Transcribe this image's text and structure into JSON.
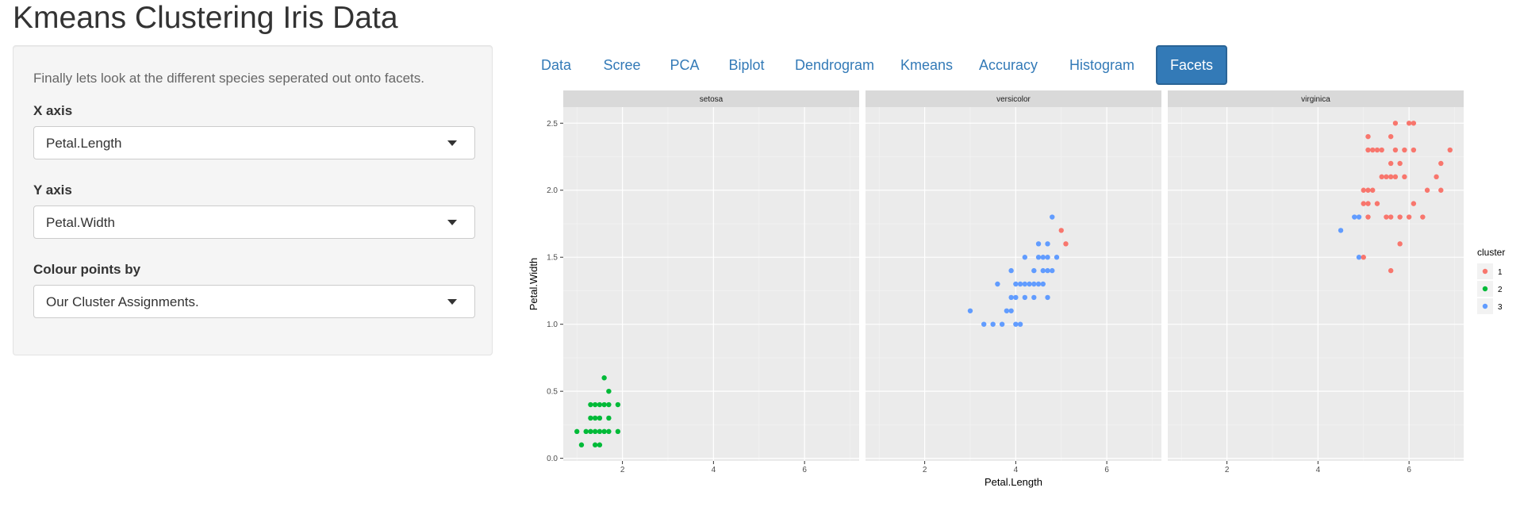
{
  "app": {
    "title": "Kmeans Clustering Iris Data"
  },
  "sidebar": {
    "description": "Finally lets look at the different species seperated out onto facets.",
    "x_axis": {
      "label": "X axis",
      "value": "Petal.Length"
    },
    "y_axis": {
      "label": "Y axis",
      "value": "Petal.Width"
    },
    "colour_by": {
      "label": "Colour points by",
      "value": "Our Cluster Assignments."
    }
  },
  "tabs": [
    {
      "label": "Data",
      "active": false
    },
    {
      "label": "Scree",
      "active": false
    },
    {
      "label": "PCA",
      "active": false
    },
    {
      "label": "Biplot",
      "active": false
    },
    {
      "label": "Dendrogram",
      "active": false
    },
    {
      "label": "Kmeans",
      "active": false
    },
    {
      "label": "Accuracy",
      "active": false
    },
    {
      "label": "Histogram",
      "active": false
    },
    {
      "label": "Facets",
      "active": true
    }
  ],
  "colors": {
    "accent": "#337ab7",
    "cluster1": "#f8766d",
    "cluster2": "#00ba38",
    "cluster3": "#619cff"
  },
  "chart_data": {
    "type": "scatter",
    "xlabel": "Petal.Length",
    "ylabel": "Petal.Width",
    "xlim": [
      0.7,
      7.2
    ],
    "ylim": [
      -0.02,
      2.62
    ],
    "x_ticks": [
      "2",
      "4",
      "6"
    ],
    "x_tick_values": [
      2,
      4,
      6
    ],
    "y_ticks": [
      "0.0",
      "0.5",
      "1.0",
      "1.5",
      "2.0",
      "2.5"
    ],
    "y_tick_values": [
      0,
      0.5,
      1.0,
      1.5,
      2.0,
      2.5
    ],
    "grid": true,
    "legend": {
      "title": "cluster",
      "position": "right",
      "entries": [
        "1",
        "2",
        "3"
      ]
    },
    "facets": [
      {
        "name": "setosa",
        "points": [
          [
            1.0,
            0.2
          ],
          [
            1.1,
            0.1
          ],
          [
            1.2,
            0.2
          ],
          [
            1.3,
            0.2
          ],
          [
            1.3,
            0.3
          ],
          [
            1.3,
            0.4
          ],
          [
            1.4,
            0.1
          ],
          [
            1.4,
            0.2
          ],
          [
            1.4,
            0.3
          ],
          [
            1.4,
            0.4
          ],
          [
            1.5,
            0.1
          ],
          [
            1.5,
            0.2
          ],
          [
            1.5,
            0.3
          ],
          [
            1.5,
            0.4
          ],
          [
            1.6,
            0.2
          ],
          [
            1.6,
            0.4
          ],
          [
            1.6,
            0.6
          ],
          [
            1.7,
            0.2
          ],
          [
            1.7,
            0.3
          ],
          [
            1.7,
            0.4
          ],
          [
            1.7,
            0.5
          ],
          [
            1.9,
            0.2
          ],
          [
            1.9,
            0.4
          ]
        ],
        "cluster": [
          2,
          2,
          2,
          2,
          2,
          2,
          2,
          2,
          2,
          2,
          2,
          2,
          2,
          2,
          2,
          2,
          2,
          2,
          2,
          2,
          2,
          2,
          2
        ]
      },
      {
        "name": "versicolor",
        "points": [
          [
            3.0,
            1.1
          ],
          [
            3.3,
            1.0
          ],
          [
            3.5,
            1.0
          ],
          [
            3.6,
            1.3
          ],
          [
            3.7,
            1.0
          ],
          [
            3.8,
            1.1
          ],
          [
            3.9,
            1.1
          ],
          [
            3.9,
            1.2
          ],
          [
            3.9,
            1.4
          ],
          [
            4.0,
            1.0
          ],
          [
            4.0,
            1.2
          ],
          [
            4.0,
            1.3
          ],
          [
            4.1,
            1.0
          ],
          [
            4.1,
            1.3
          ],
          [
            4.2,
            1.2
          ],
          [
            4.2,
            1.3
          ],
          [
            4.2,
            1.5
          ],
          [
            4.3,
            1.3
          ],
          [
            4.4,
            1.2
          ],
          [
            4.4,
            1.3
          ],
          [
            4.4,
            1.4
          ],
          [
            4.5,
            1.3
          ],
          [
            4.5,
            1.5
          ],
          [
            4.5,
            1.6
          ],
          [
            4.6,
            1.3
          ],
          [
            4.6,
            1.4
          ],
          [
            4.6,
            1.5
          ],
          [
            4.7,
            1.2
          ],
          [
            4.7,
            1.4
          ],
          [
            4.7,
            1.5
          ],
          [
            4.7,
            1.6
          ],
          [
            4.8,
            1.4
          ],
          [
            4.8,
            1.8
          ],
          [
            4.9,
            1.5
          ],
          [
            5.0,
            1.7
          ],
          [
            5.1,
            1.6
          ]
        ],
        "cluster": [
          3,
          3,
          3,
          3,
          3,
          3,
          3,
          3,
          3,
          3,
          3,
          3,
          3,
          3,
          3,
          3,
          3,
          3,
          3,
          3,
          3,
          3,
          3,
          3,
          3,
          3,
          3,
          3,
          3,
          3,
          3,
          3,
          3,
          3,
          1,
          1
        ]
      },
      {
        "name": "virginica",
        "points": [
          [
            4.5,
            1.7
          ],
          [
            4.8,
            1.8
          ],
          [
            4.9,
            1.8
          ],
          [
            4.9,
            1.5
          ],
          [
            5.0,
            1.5
          ],
          [
            5.0,
            2.0
          ],
          [
            5.0,
            1.9
          ],
          [
            5.1,
            1.8
          ],
          [
            5.1,
            1.9
          ],
          [
            5.1,
            2.0
          ],
          [
            5.1,
            2.3
          ],
          [
            5.1,
            2.4
          ],
          [
            5.2,
            2.0
          ],
          [
            5.2,
            2.3
          ],
          [
            5.3,
            1.9
          ],
          [
            5.3,
            2.3
          ],
          [
            5.4,
            2.1
          ],
          [
            5.4,
            2.3
          ],
          [
            5.5,
            1.8
          ],
          [
            5.5,
            2.1
          ],
          [
            5.6,
            1.4
          ],
          [
            5.6,
            1.8
          ],
          [
            5.6,
            2.1
          ],
          [
            5.6,
            2.2
          ],
          [
            5.6,
            2.4
          ],
          [
            5.7,
            2.1
          ],
          [
            5.7,
            2.3
          ],
          [
            5.7,
            2.5
          ],
          [
            5.8,
            1.6
          ],
          [
            5.8,
            1.8
          ],
          [
            5.8,
            2.2
          ],
          [
            5.9,
            2.1
          ],
          [
            5.9,
            2.3
          ],
          [
            6.0,
            1.8
          ],
          [
            6.0,
            2.5
          ],
          [
            6.1,
            1.9
          ],
          [
            6.1,
            2.3
          ],
          [
            6.1,
            2.5
          ],
          [
            6.3,
            1.8
          ],
          [
            6.4,
            2.0
          ],
          [
            6.6,
            2.1
          ],
          [
            6.7,
            2.0
          ],
          [
            6.7,
            2.2
          ],
          [
            6.9,
            2.3
          ]
        ],
        "cluster": [
          3,
          3,
          3,
          3,
          1,
          1,
          1,
          1,
          1,
          1,
          1,
          1,
          1,
          1,
          1,
          1,
          1,
          1,
          1,
          1,
          1,
          1,
          1,
          1,
          1,
          1,
          1,
          1,
          1,
          1,
          1,
          1,
          1,
          1,
          1,
          1,
          1,
          1,
          1,
          1,
          1,
          1,
          1,
          1
        ]
      }
    ]
  }
}
